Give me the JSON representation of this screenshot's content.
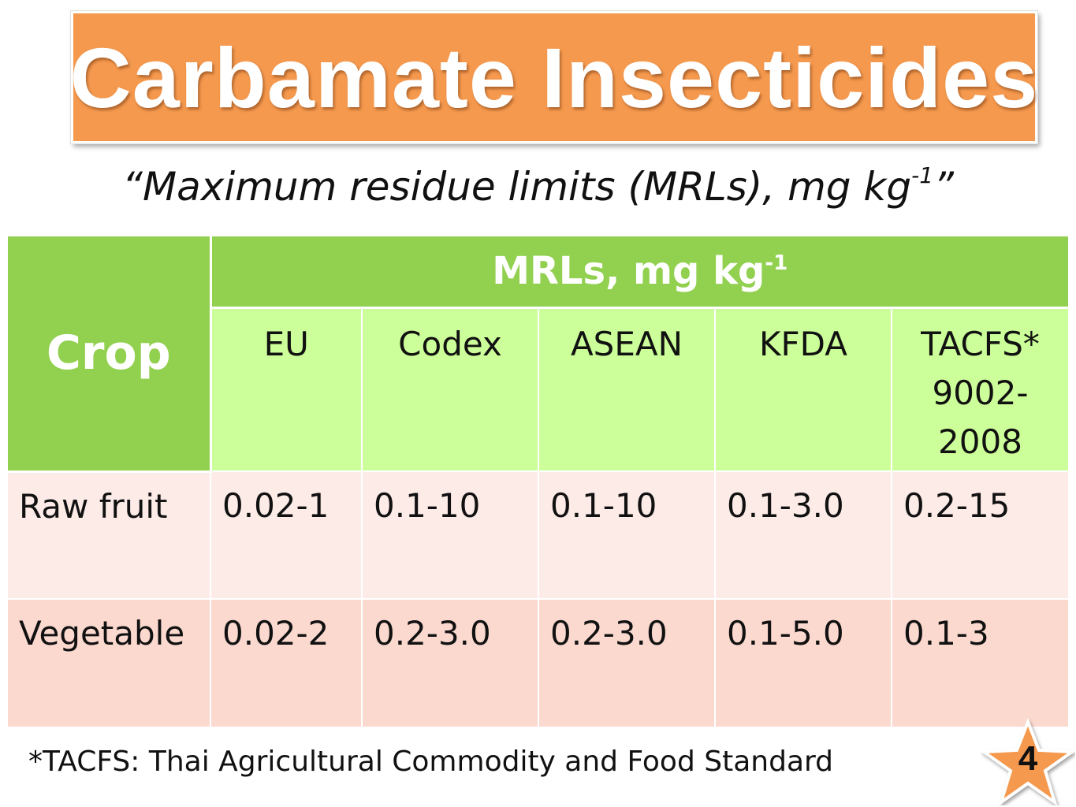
{
  "title": "Carbamate Insecticides",
  "subtitle": {
    "main": "“Maximum residue limits (MRLs), mg kg",
    "superscript": "-1",
    "close": "”"
  },
  "table": {
    "crop_header": "Crop",
    "group_header": {
      "main": "MRLs, mg kg",
      "superscript": "-1"
    },
    "columns": [
      "EU",
      "Codex",
      "ASEAN",
      "KFDA",
      "TACFS* 9002-2008"
    ],
    "rows": [
      {
        "crop": "Raw fruit",
        "values": [
          "0.02-1",
          "0.1-10",
          "0.1-10",
          "0.1-3.0",
          "0.2-15"
        ]
      },
      {
        "crop": "Vegetable",
        "values": [
          "0.02-2",
          "0.2-3.0",
          "0.2-3.0",
          "0.1-5.0",
          "0.1-3"
        ]
      }
    ]
  },
  "footnote": "*TACFS: Thai Agricultural Commodity and Food Standard",
  "page_number": "4",
  "colors": {
    "title_bg": "#f5994e",
    "header_green": "#92d050",
    "subheader_green": "#ccff99",
    "row1_bg": "#fcebe7",
    "row2_bg": "#fbd9cf",
    "star": "#f5994e"
  },
  "icons": {
    "page_badge": "star-icon"
  }
}
